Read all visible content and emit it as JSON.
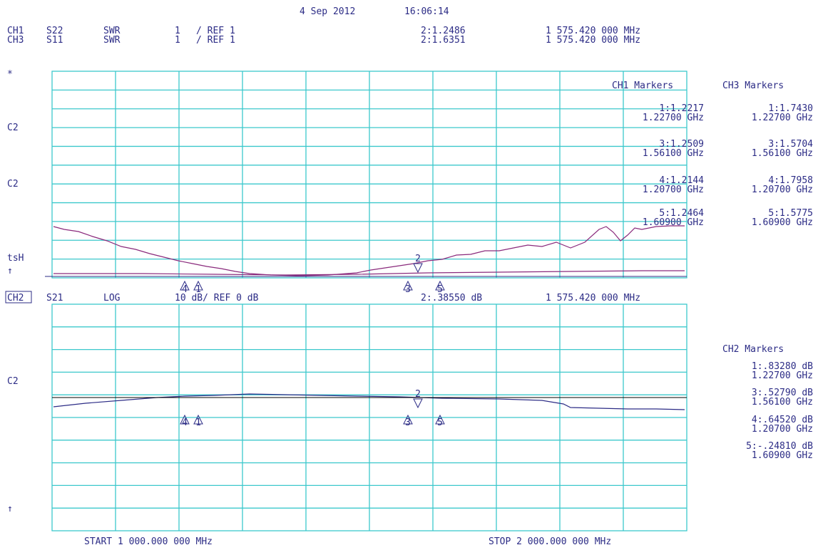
{
  "header": {
    "date": "4 Sep 2012",
    "time": "16:06:14"
  },
  "upper": {
    "lines": [
      {
        "ch": "CH1",
        "param": "S22",
        "format": "SWR",
        "scale": "1",
        "ref": "/ REF 1",
        "marker": "2:1.2486",
        "freq": "1 575.420 000 MHz"
      },
      {
        "ch": "CH3",
        "param": "S11",
        "format": "SWR",
        "scale": "1",
        "ref": "/ REF 1",
        "marker": "2:1.6351",
        "freq": "1 575.420 000 MHz"
      }
    ],
    "left_labels": [
      "*",
      "C2",
      "C2",
      "tsH",
      "↑"
    ],
    "ch1_title": "CH1 Markers",
    "ch3_title": "CH3 Markers",
    "ch1_markers": [
      [
        "1:1.2217",
        "1.22700 GHz"
      ],
      [
        "3:1.2509",
        "1.56100 GHz"
      ],
      [
        "4:1.2144",
        "1.20700 GHz"
      ],
      [
        "5:1.2464",
        "1.60900 GHz"
      ]
    ],
    "ch3_markers": [
      [
        "1:1.7430",
        "1.22700 GHz"
      ],
      [
        "3:1.5704",
        "1.56100 GHz"
      ],
      [
        "4:1.7958",
        "1.20700 GHz"
      ],
      [
        "5:1.5775",
        "1.60900 GHz"
      ]
    ],
    "flags": [
      "4",
      "1",
      "3",
      "5",
      "2"
    ]
  },
  "lower": {
    "line": {
      "ch": "CH2",
      "param": "S21",
      "format": "LOG",
      "scale": "10 dB/ REF 0 dB",
      "marker": "2:.38550 dB",
      "freq": "1 575.420 000 MHz"
    },
    "left_labels": [
      "C2",
      "↑"
    ],
    "ch2_title": "CH2 Markers",
    "ch2_markers": [
      [
        "1:.83280 dB",
        "1.22700 GHz"
      ],
      [
        "3:.52790 dB",
        "1.56100 GHz"
      ],
      [
        "4:.64520 dB",
        "1.20700 GHz"
      ],
      [
        "5:-.24810 dB",
        "1.60900 GHz"
      ]
    ],
    "flags": [
      "4",
      "1",
      "3",
      "5",
      "2"
    ]
  },
  "footer": {
    "start": "START 1 000.000 000 MHz",
    "stop": "STOP 2 000.000 000 MHz"
  }
}
